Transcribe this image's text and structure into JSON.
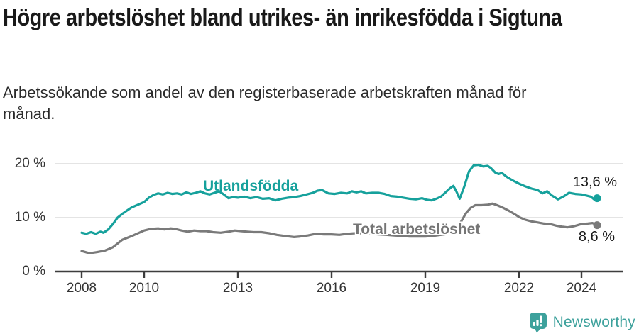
{
  "title": "Högre arbetslöshet bland utrikes- än inrikesfödda i Sigtuna",
  "subtitle": "Arbetssökande som andel av den registerbaserade arbetskraften månad för månad.",
  "branding": {
    "logo_text": "Newsworthy",
    "logo_icon": "bar-chart-speech-bubble-icon",
    "logo_color": "#3da19c"
  },
  "colors": {
    "foreign_born_series": "#16a19c",
    "total_series": "#7a7a7a",
    "title_text": "#191919",
    "body_text": "#2b2b2b",
    "axis_text": "#333333",
    "gridline": "#dcdcdc",
    "axis_line": "#3d3d3d",
    "value_label_text": "#1a1a1a",
    "background": "#ffffff"
  },
  "chart_data": {
    "type": "line",
    "title": "Högre arbetslöshet bland utrikes- än inrikesfödda i Sigtuna",
    "subtitle": "Arbetssökande som andel av den registerbaserade arbetskraften månad för månad.",
    "xlabel": "",
    "ylabel": "",
    "unit": "%",
    "x_unit": "year (monthly data)",
    "x_range": [
      2007.16,
      2025.32
    ],
    "y_range": [
      0,
      20
    ],
    "grid": "horizontal-only",
    "legend_position": "inline-labels-on-lines",
    "x_ticks": [
      {
        "value": 2008,
        "label": "2008"
      },
      {
        "value": 2010,
        "label": "2010"
      },
      {
        "value": 2013,
        "label": "2013"
      },
      {
        "value": 2016,
        "label": "2016"
      },
      {
        "value": 2019,
        "label": "2019"
      },
      {
        "value": 2022,
        "label": "2022"
      },
      {
        "value": 2024,
        "label": "2024"
      }
    ],
    "y_ticks": [
      {
        "value": 0,
        "label": "0 %"
      },
      {
        "value": 10,
        "label": "10 %"
      },
      {
        "value": 20,
        "label": "20 %"
      }
    ],
    "series": [
      {
        "name": "Utlandsfödda",
        "color": "#16a19c",
        "end_label": "13,6 %",
        "end_value": 13.6,
        "points": [
          [
            2008.0,
            7.2
          ],
          [
            2008.15,
            7.0
          ],
          [
            2008.3,
            7.3
          ],
          [
            2008.45,
            7.0
          ],
          [
            2008.6,
            7.4
          ],
          [
            2008.7,
            7.2
          ],
          [
            2008.85,
            7.8
          ],
          [
            2009.0,
            8.8
          ],
          [
            2009.15,
            10.0
          ],
          [
            2009.3,
            10.7
          ],
          [
            2009.45,
            11.3
          ],
          [
            2009.6,
            11.9
          ],
          [
            2009.8,
            12.4
          ],
          [
            2010.0,
            12.9
          ],
          [
            2010.15,
            13.7
          ],
          [
            2010.3,
            14.2
          ],
          [
            2010.45,
            14.5
          ],
          [
            2010.6,
            14.3
          ],
          [
            2010.75,
            14.6
          ],
          [
            2010.9,
            14.4
          ],
          [
            2011.05,
            14.5
          ],
          [
            2011.2,
            14.3
          ],
          [
            2011.35,
            14.7
          ],
          [
            2011.5,
            14.4
          ],
          [
            2011.65,
            14.6
          ],
          [
            2011.8,
            14.9
          ],
          [
            2011.95,
            14.5
          ],
          [
            2012.1,
            14.3
          ],
          [
            2012.25,
            14.6
          ],
          [
            2012.4,
            14.9
          ],
          [
            2012.55,
            14.3
          ],
          [
            2012.7,
            13.6
          ],
          [
            2012.85,
            13.8
          ],
          [
            2013.0,
            13.7
          ],
          [
            2013.2,
            13.9
          ],
          [
            2013.4,
            13.6
          ],
          [
            2013.6,
            13.8
          ],
          [
            2013.8,
            13.5
          ],
          [
            2014.0,
            13.6
          ],
          [
            2014.2,
            13.2
          ],
          [
            2014.4,
            13.5
          ],
          [
            2014.6,
            13.7
          ],
          [
            2014.8,
            13.8
          ],
          [
            2015.0,
            14.0
          ],
          [
            2015.2,
            14.3
          ],
          [
            2015.4,
            14.6
          ],
          [
            2015.55,
            15.0
          ],
          [
            2015.7,
            15.1
          ],
          [
            2015.9,
            14.5
          ],
          [
            2016.1,
            14.4
          ],
          [
            2016.3,
            14.6
          ],
          [
            2016.5,
            14.5
          ],
          [
            2016.65,
            14.9
          ],
          [
            2016.8,
            14.7
          ],
          [
            2016.95,
            14.9
          ],
          [
            2017.1,
            14.5
          ],
          [
            2017.3,
            14.6
          ],
          [
            2017.5,
            14.6
          ],
          [
            2017.7,
            14.4
          ],
          [
            2017.9,
            14.0
          ],
          [
            2018.1,
            13.9
          ],
          [
            2018.3,
            13.7
          ],
          [
            2018.5,
            13.5
          ],
          [
            2018.7,
            13.4
          ],
          [
            2018.9,
            13.6
          ],
          [
            2019.05,
            13.3
          ],
          [
            2019.2,
            13.2
          ],
          [
            2019.35,
            13.5
          ],
          [
            2019.5,
            13.9
          ],
          [
            2019.65,
            14.7
          ],
          [
            2019.8,
            15.5
          ],
          [
            2019.9,
            15.9
          ],
          [
            2020.0,
            14.8
          ],
          [
            2020.1,
            13.5
          ],
          [
            2020.25,
            15.8
          ],
          [
            2020.4,
            18.6
          ],
          [
            2020.55,
            19.7
          ],
          [
            2020.7,
            19.8
          ],
          [
            2020.85,
            19.5
          ],
          [
            2021.0,
            19.6
          ],
          [
            2021.1,
            19.2
          ],
          [
            2021.25,
            18.3
          ],
          [
            2021.35,
            18.1
          ],
          [
            2021.45,
            18.3
          ],
          [
            2021.6,
            17.6
          ],
          [
            2021.8,
            16.9
          ],
          [
            2022.0,
            16.3
          ],
          [
            2022.2,
            15.8
          ],
          [
            2022.4,
            15.4
          ],
          [
            2022.6,
            15.1
          ],
          [
            2022.75,
            14.5
          ],
          [
            2022.9,
            14.9
          ],
          [
            2023.05,
            14.1
          ],
          [
            2023.25,
            13.4
          ],
          [
            2023.45,
            14.0
          ],
          [
            2023.6,
            14.6
          ],
          [
            2023.8,
            14.4
          ],
          [
            2024.0,
            14.3
          ],
          [
            2024.15,
            14.1
          ],
          [
            2024.3,
            13.9
          ],
          [
            2024.4,
            13.4
          ],
          [
            2024.5,
            13.6
          ]
        ]
      },
      {
        "name": "Total arbetslöshet",
        "color": "#7a7a7a",
        "end_label": "8,6 %",
        "end_value": 8.6,
        "points": [
          [
            2008.0,
            3.8
          ],
          [
            2008.25,
            3.4
          ],
          [
            2008.5,
            3.6
          ],
          [
            2008.75,
            3.9
          ],
          [
            2009.0,
            4.5
          ],
          [
            2009.3,
            5.9
          ],
          [
            2009.65,
            6.7
          ],
          [
            2010.0,
            7.6
          ],
          [
            2010.2,
            7.9
          ],
          [
            2010.45,
            8.0
          ],
          [
            2010.65,
            7.8
          ],
          [
            2010.85,
            8.0
          ],
          [
            2011.0,
            7.9
          ],
          [
            2011.2,
            7.6
          ],
          [
            2011.4,
            7.4
          ],
          [
            2011.6,
            7.6
          ],
          [
            2011.8,
            7.5
          ],
          [
            2012.0,
            7.5
          ],
          [
            2012.2,
            7.3
          ],
          [
            2012.45,
            7.2
          ],
          [
            2012.7,
            7.4
          ],
          [
            2012.9,
            7.6
          ],
          [
            2013.1,
            7.5
          ],
          [
            2013.3,
            7.4
          ],
          [
            2013.5,
            7.3
          ],
          [
            2013.75,
            7.3
          ],
          [
            2014.0,
            7.1
          ],
          [
            2014.25,
            6.8
          ],
          [
            2014.5,
            6.6
          ],
          [
            2014.8,
            6.4
          ],
          [
            2015.0,
            6.5
          ],
          [
            2015.25,
            6.7
          ],
          [
            2015.5,
            7.0
          ],
          [
            2015.75,
            6.9
          ],
          [
            2016.0,
            6.9
          ],
          [
            2016.25,
            6.8
          ],
          [
            2016.5,
            7.0
          ],
          [
            2016.75,
            7.1
          ],
          [
            2017.0,
            7.1
          ],
          [
            2017.25,
            7.0
          ],
          [
            2017.5,
            6.9
          ],
          [
            2017.75,
            6.8
          ],
          [
            2018.0,
            6.7
          ],
          [
            2018.25,
            6.6
          ],
          [
            2018.5,
            6.5
          ],
          [
            2018.75,
            6.5
          ],
          [
            2019.0,
            6.5
          ],
          [
            2019.25,
            6.6
          ],
          [
            2019.5,
            6.8
          ],
          [
            2019.75,
            7.0
          ],
          [
            2020.0,
            7.4
          ],
          [
            2020.15,
            9.3
          ],
          [
            2020.3,
            10.8
          ],
          [
            2020.45,
            11.8
          ],
          [
            2020.6,
            12.3
          ],
          [
            2020.8,
            12.3
          ],
          [
            2021.0,
            12.4
          ],
          [
            2021.15,
            12.6
          ],
          [
            2021.3,
            12.3
          ],
          [
            2021.5,
            11.8
          ],
          [
            2021.7,
            11.2
          ],
          [
            2021.9,
            10.5
          ],
          [
            2022.0,
            10.1
          ],
          [
            2022.2,
            9.6
          ],
          [
            2022.4,
            9.3
          ],
          [
            2022.6,
            9.1
          ],
          [
            2022.8,
            8.9
          ],
          [
            2023.0,
            8.8
          ],
          [
            2023.2,
            8.5
          ],
          [
            2023.4,
            8.3
          ],
          [
            2023.55,
            8.2
          ],
          [
            2023.75,
            8.4
          ],
          [
            2024.0,
            8.8
          ],
          [
            2024.2,
            8.9
          ],
          [
            2024.35,
            9.0
          ],
          [
            2024.5,
            8.6
          ]
        ]
      }
    ]
  }
}
